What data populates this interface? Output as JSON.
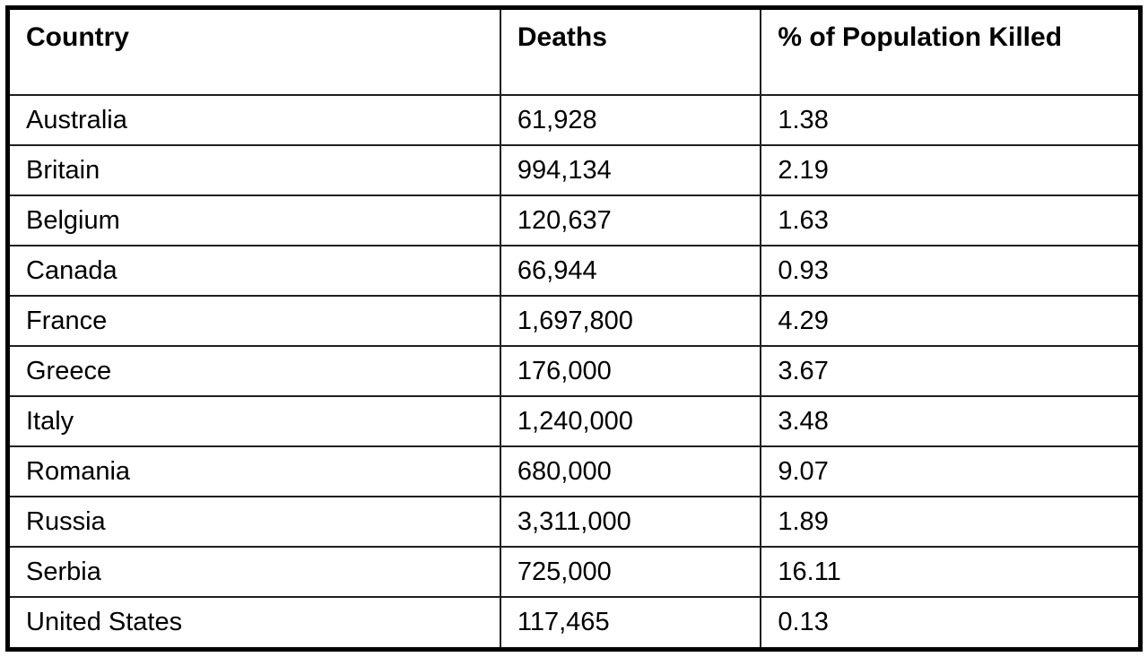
{
  "table": {
    "columns": [
      {
        "key": "country",
        "label": "Country"
      },
      {
        "key": "deaths",
        "label": "Deaths"
      },
      {
        "key": "pct",
        "label": "% of Population Killed"
      }
    ],
    "rows": [
      {
        "country": "Australia",
        "deaths": "61,928",
        "pct": "1.38"
      },
      {
        "country": "Britain",
        "deaths": "994,134",
        "pct": "2.19"
      },
      {
        "country": "Belgium",
        "deaths": "120,637",
        "pct": "1.63"
      },
      {
        "country": "Canada",
        "deaths": "66,944",
        "pct": "0.93"
      },
      {
        "country": "France",
        "deaths": "1,697,800",
        "pct": "4.29"
      },
      {
        "country": "Greece",
        "deaths": "176,000",
        "pct": "3.67"
      },
      {
        "country": "Italy",
        "deaths": "1,240,000",
        "pct": "3.48"
      },
      {
        "country": "Romania",
        "deaths": "680,000",
        "pct": "9.07"
      },
      {
        "country": "Russia",
        "deaths": "3,311,000",
        "pct": "1.89"
      },
      {
        "country": "Serbia",
        "deaths": "725,000",
        "pct": "16.11"
      },
      {
        "country": "United States",
        "deaths": "117,465",
        "pct": "0.13"
      }
    ]
  },
  "colors": {
    "border_outer": "#000000",
    "border_inner": "#1f1f1f",
    "background": "#ffffff",
    "text": "#000000"
  },
  "chart_data": {
    "type": "table",
    "title": "",
    "columns": [
      "Country",
      "Deaths",
      "% of Population Killed"
    ],
    "categories": [
      "Australia",
      "Britain",
      "Belgium",
      "Canada",
      "France",
      "Greece",
      "Italy",
      "Romania",
      "Russia",
      "Serbia",
      "United States"
    ],
    "series": [
      {
        "name": "Deaths",
        "values": [
          61928,
          994134,
          120637,
          66944,
          1697800,
          176000,
          1240000,
          680000,
          3311000,
          725000,
          117465
        ]
      },
      {
        "name": "% of Population Killed",
        "values": [
          1.38,
          2.19,
          1.63,
          0.93,
          4.29,
          3.67,
          3.48,
          9.07,
          1.89,
          16.11,
          0.13
        ]
      }
    ],
    "layout_hints": {
      "grid": "full table borders",
      "header_bold": true,
      "alignment": "left"
    }
  }
}
